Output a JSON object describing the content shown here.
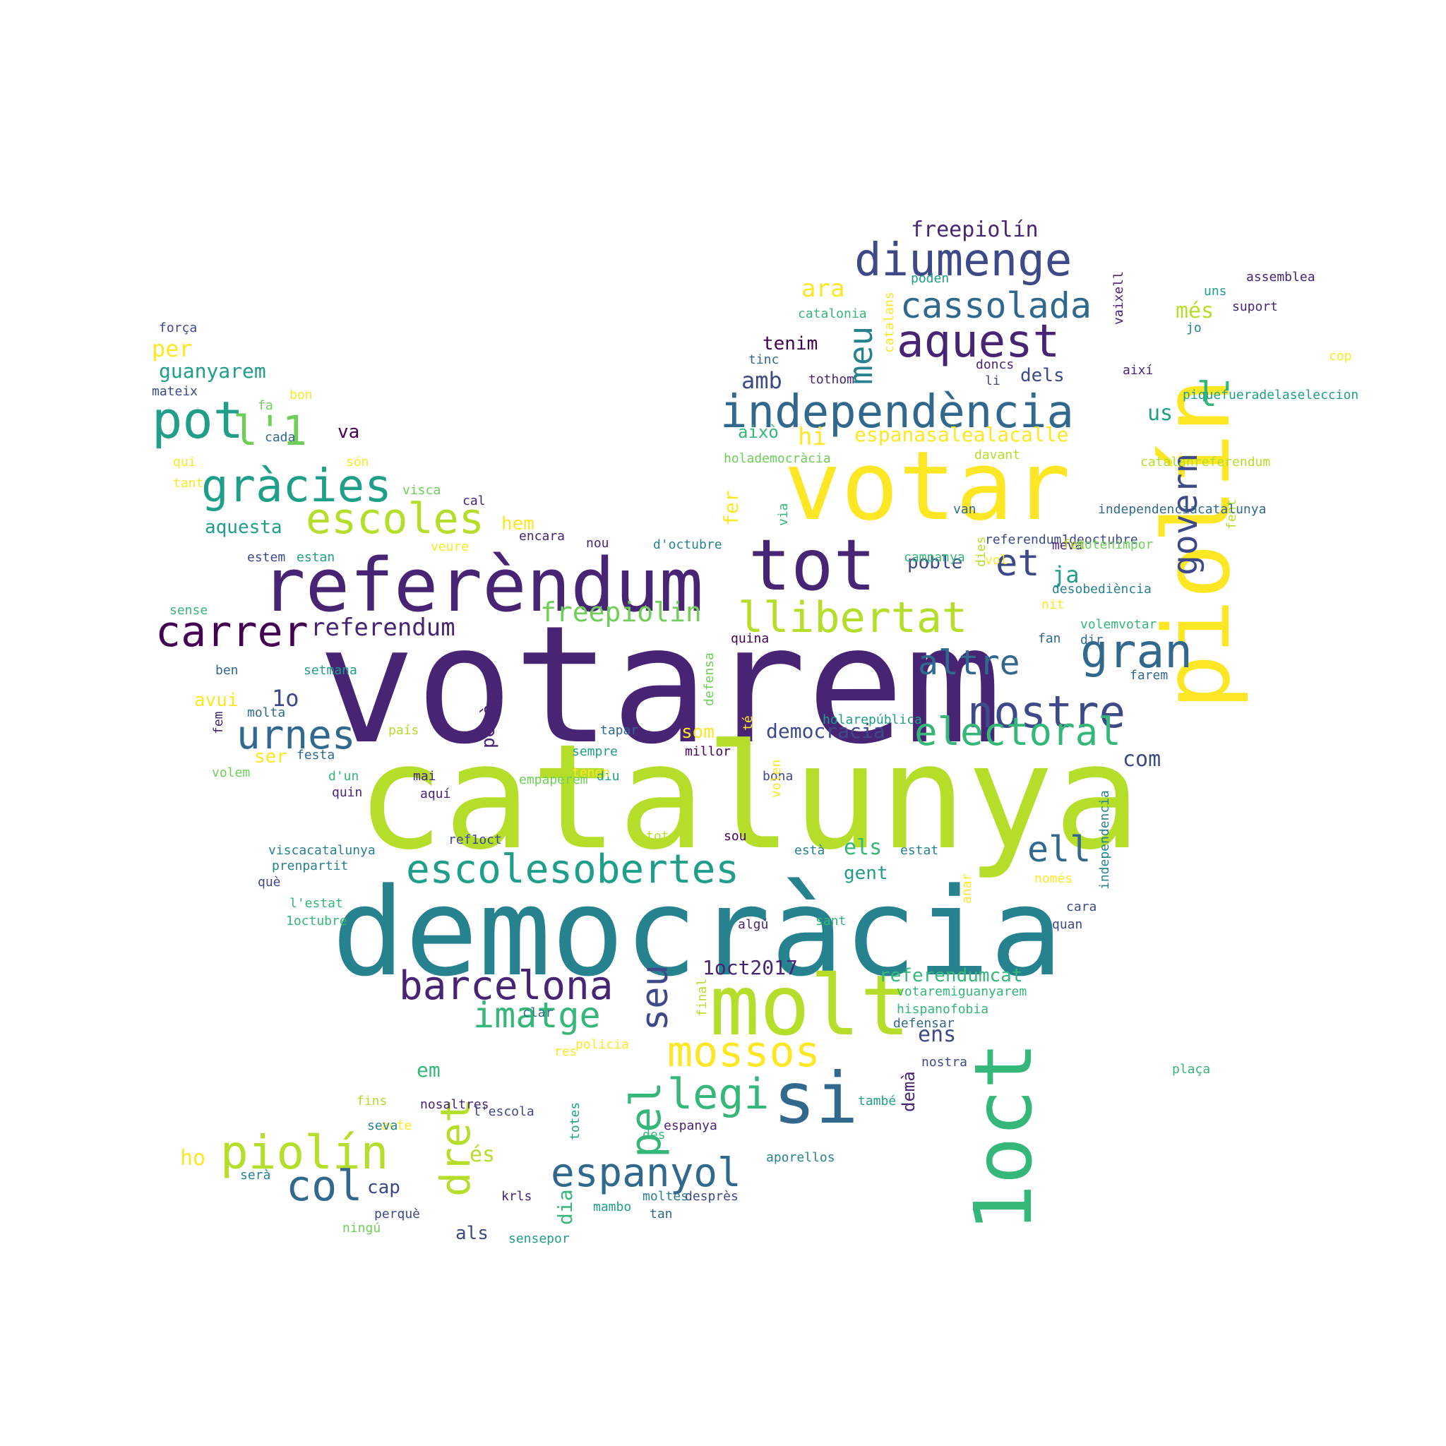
{
  "palette": {
    "purple_dark": "#440154",
    "purple": "#482475",
    "indigo": "#3e4989",
    "blue": "#31688e",
    "teal": "#26828e",
    "teal_green": "#1f9e89",
    "green": "#35b779",
    "lime": "#6ece58",
    "yellow_green": "#b5de2b",
    "yellow": "#fde725"
  },
  "words": [
    {
      "text": "votarem",
      "color": "purple"
    },
    {
      "text": "catalunya",
      "color": "yellow_green"
    },
    {
      "text": "democràcia",
      "color": "teal"
    },
    {
      "text": "votar",
      "color": "yellow"
    },
    {
      "text": "piolín",
      "color": "yellow"
    },
    {
      "text": "referèndum",
      "color": "purple"
    },
    {
      "text": "tot",
      "color": "purple"
    },
    {
      "text": "molt",
      "color": "yellow_green"
    },
    {
      "text": "1oct",
      "color": "green"
    },
    {
      "text": "si",
      "color": "blue"
    },
    {
      "text": "independència",
      "color": "blue"
    },
    {
      "text": "diumenge",
      "color": "indigo"
    },
    {
      "text": "aquest",
      "color": "purple"
    },
    {
      "text": "nostre",
      "color": "indigo"
    },
    {
      "text": "escolesobertes",
      "color": "teal_green"
    },
    {
      "text": "barcelona",
      "color": "purple"
    },
    {
      "text": "llibertat",
      "color": "yellow_green"
    },
    {
      "text": "gràcies",
      "color": "teal_green"
    },
    {
      "text": "carrer",
      "color": "purple_dark"
    },
    {
      "text": "cassolada",
      "color": "blue"
    },
    {
      "text": "escoles",
      "color": "yellow_green"
    },
    {
      "text": "pot",
      "color": "teal_green"
    },
    {
      "text": "urnes",
      "color": "blue"
    },
    {
      "text": "gran",
      "color": "blue"
    },
    {
      "text": "espanyol",
      "color": "blue"
    },
    {
      "text": "piolín",
      "color": "yellow_green"
    },
    {
      "text": "electoral",
      "color": "green"
    },
    {
      "text": "mossos",
      "color": "yellow"
    },
    {
      "text": "govern",
      "color": "indigo"
    },
    {
      "text": "dret",
      "color": "yellow_green"
    },
    {
      "text": "legi",
      "color": "green"
    },
    {
      "text": "altre",
      "color": "blue"
    },
    {
      "text": "imatge",
      "color": "green"
    },
    {
      "text": "col",
      "color": "blue"
    },
    {
      "text": "pel",
      "color": "green"
    },
    {
      "text": "seu",
      "color": "indigo"
    },
    {
      "text": "l'1",
      "color": "lime"
    },
    {
      "text": "l'",
      "color": "green"
    },
    {
      "text": "et",
      "color": "indigo"
    },
    {
      "text": "meu",
      "color": "teal"
    },
    {
      "text": "ell",
      "color": "blue"
    },
    {
      "text": "freepiolin",
      "color": "lime"
    },
    {
      "text": "referendum",
      "color": "purple"
    },
    {
      "text": "ara",
      "color": "yellow"
    },
    {
      "text": "freepiolín",
      "color": "purple"
    },
    {
      "text": "ja",
      "color": "teal_green"
    },
    {
      "text": "1oct2017",
      "color": "purple"
    },
    {
      "text": "referendumcat",
      "color": "green"
    },
    {
      "text": "amb",
      "color": "indigo"
    },
    {
      "text": "més",
      "color": "yellow_green"
    },
    {
      "text": "tenim",
      "color": "purple_dark"
    },
    {
      "text": "hi",
      "color": "yellow"
    },
    {
      "text": "espanasalealacalle",
      "color": "yellow"
    },
    {
      "text": "això",
      "color": "green"
    },
    {
      "text": "dels",
      "color": "indigo"
    },
    {
      "text": "us",
      "color": "teal_green"
    },
    {
      "text": "com",
      "color": "indigo"
    },
    {
      "text": "els",
      "color": "green"
    },
    {
      "text": "gent",
      "color": "teal_green"
    },
    {
      "text": "poble",
      "color": "indigo"
    },
    {
      "text": "democracia",
      "color": "indigo"
    },
    {
      "text": "som",
      "color": "yellow"
    },
    {
      "text": "ens",
      "color": "indigo"
    },
    {
      "text": "em",
      "color": "green"
    },
    {
      "text": "és",
      "color": "yellow_green"
    },
    {
      "text": "ho",
      "color": "yellow"
    },
    {
      "text": "cap",
      "color": "indigo"
    },
    {
      "text": "als",
      "color": "indigo"
    },
    {
      "text": "dia",
      "color": "green"
    },
    {
      "text": "hem",
      "color": "yellow"
    },
    {
      "text": "aquesta",
      "color": "teal_green"
    },
    {
      "text": "per",
      "color": "yellow"
    },
    {
      "text": "guanyarem",
      "color": "teal_green"
    },
    {
      "text": "va",
      "color": "purple_dark"
    },
    {
      "text": "1o",
      "color": "indigo"
    },
    {
      "text": "avui",
      "color": "yellow"
    },
    {
      "text": "ser",
      "color": "yellow"
    },
    {
      "text": "fer",
      "color": "yellow"
    },
    {
      "text": "però",
      "color": "purple"
    },
    {
      "text": "demà",
      "color": "purple"
    },
    {
      "text": "força",
      "color": "indigo"
    },
    {
      "text": "mateix",
      "color": "indigo"
    },
    {
      "text": "fa",
      "color": "lime"
    },
    {
      "text": "bon",
      "color": "yellow"
    },
    {
      "text": "cada",
      "color": "blue"
    },
    {
      "text": "qui",
      "color": "yellow"
    },
    {
      "text": "són",
      "color": "yellow"
    },
    {
      "text": "tant",
      "color": "yellow"
    },
    {
      "text": "visca",
      "color": "lime"
    },
    {
      "text": "cal",
      "color": "purple"
    },
    {
      "text": "encara",
      "color": "purple"
    },
    {
      "text": "estem",
      "color": "indigo"
    },
    {
      "text": "estan",
      "color": "teal_green"
    },
    {
      "text": "veure",
      "color": "yellow"
    },
    {
      "text": "sense",
      "color": "green"
    },
    {
      "text": "ben",
      "color": "blue"
    },
    {
      "text": "setmana",
      "color": "teal_green"
    },
    {
      "text": "fem",
      "color": "purple"
    },
    {
      "text": "molta",
      "color": "blue"
    },
    {
      "text": "festa",
      "color": "blue"
    },
    {
      "text": "volem",
      "color": "lime"
    },
    {
      "text": "d'un",
      "color": "green"
    },
    {
      "text": "quin",
      "color": "purple"
    },
    {
      "text": "aquí",
      "color": "purple"
    },
    {
      "text": "mai",
      "color": "purple"
    },
    {
      "text": "país",
      "color": "yellow_green"
    },
    {
      "text": "tapar",
      "color": "blue"
    },
    {
      "text": "sempre",
      "color": "teal_green"
    },
    {
      "text": "millor",
      "color": "purple_dark"
    },
    {
      "text": "diu",
      "color": "teal_green"
    },
    {
      "text": "tenen",
      "color": "yellow"
    },
    {
      "text": "bona",
      "color": "indigo"
    },
    {
      "text": "empaperem",
      "color": "lime"
    },
    {
      "text": "volen",
      "color": "yellow"
    },
    {
      "text": "defensa",
      "color": "lime"
    },
    {
      "text": "té",
      "color": "yellow"
    },
    {
      "text": "holarepública",
      "color": "teal_green"
    },
    {
      "text": "viscacatalunya",
      "color": "teal"
    },
    {
      "text": "prenpartit",
      "color": "teal"
    },
    {
      "text": "què",
      "color": "indigo"
    },
    {
      "text": "l'estat",
      "color": "green"
    },
    {
      "text": "1octubre",
      "color": "green"
    },
    {
      "text": "ref1oct",
      "color": "indigo"
    },
    {
      "text": "sou",
      "color": "purple_dark"
    },
    {
      "text": "tota",
      "color": "yellow_green"
    },
    {
      "text": "està",
      "color": "teal"
    },
    {
      "text": "estat",
      "color": "teal"
    },
    {
      "text": "algú",
      "color": "purple"
    },
    {
      "text": "sant",
      "color": "green"
    },
    {
      "text": "cara",
      "color": "indigo"
    },
    {
      "text": "quan",
      "color": "indigo"
    },
    {
      "text": "anar",
      "color": "yellow"
    },
    {
      "text": "només",
      "color": "yellow"
    },
    {
      "text": "independencia",
      "color": "teal"
    },
    {
      "text": "votaremiguanyarem",
      "color": "green"
    },
    {
      "text": "hispanofobia",
      "color": "green"
    },
    {
      "text": "defensar",
      "color": "blue"
    },
    {
      "text": "final",
      "color": "yellow_green"
    },
    {
      "text": "nostra",
      "color": "indigo"
    },
    {
      "text": "clar",
      "color": "blue"
    },
    {
      "text": "res",
      "color": "yellow"
    },
    {
      "text": "policia",
      "color": "yellow"
    },
    {
      "text": "nosaltres",
      "color": "purple"
    },
    {
      "text": "plaça",
      "color": "green"
    },
    {
      "text": "fins",
      "color": "yellow_green"
    },
    {
      "text": "l'escola",
      "color": "indigo"
    },
    {
      "text": "acte",
      "color": "yellow"
    },
    {
      "text": "totes",
      "color": "teal_green"
    },
    {
      "text": "també",
      "color": "teal_green"
    },
    {
      "text": "seva",
      "color": "teal"
    },
    {
      "text": "espanya",
      "color": "purple"
    },
    {
      "text": "des",
      "color": "green"
    },
    {
      "text": "aporellos",
      "color": "teal"
    },
    {
      "text": "serà",
      "color": "teal"
    },
    {
      "text": "krls",
      "color": "purple"
    },
    {
      "text": "moltes",
      "color": "teal"
    },
    {
      "text": "desprès",
      "color": "indigo"
    },
    {
      "text": "perquè",
      "color": "indigo"
    },
    {
      "text": "mambo",
      "color": "teal_green"
    },
    {
      "text": "tan",
      "color": "blue"
    },
    {
      "text": "ningú",
      "color": "lime"
    },
    {
      "text": "sensepor",
      "color": "teal_green"
    },
    {
      "text": "poden",
      "color": "teal_green"
    },
    {
      "text": "catalonia",
      "color": "green"
    },
    {
      "text": "catalans",
      "color": "yellow"
    },
    {
      "text": "vaixell",
      "color": "purple"
    },
    {
      "text": "assemblea",
      "color": "purple"
    },
    {
      "text": "uns",
      "color": "teal_green"
    },
    {
      "text": "suport",
      "color": "purple"
    },
    {
      "text": "jo",
      "color": "teal"
    },
    {
      "text": "cop",
      "color": "yellow"
    },
    {
      "text": "tinc",
      "color": "blue"
    },
    {
      "text": "tothom",
      "color": "purple"
    },
    {
      "text": "doncs",
      "color": "purple"
    },
    {
      "text": "li",
      "color": "indigo"
    },
    {
      "text": "així",
      "color": "purple"
    },
    {
      "text": "piquefueradelaseleccion",
      "color": "teal_green"
    },
    {
      "text": "holademocràcia",
      "color": "lime"
    },
    {
      "text": "davant",
      "color": "yellow_green"
    },
    {
      "text": "catalanreferendum",
      "color": "yellow_green"
    },
    {
      "text": "fent",
      "color": "yellow_green"
    },
    {
      "text": "via",
      "color": "green"
    },
    {
      "text": "van",
      "color": "blue"
    },
    {
      "text": "independenciacatalunya",
      "color": "blue"
    },
    {
      "text": "referendum1deoctubre",
      "color": "indigo"
    },
    {
      "text": "nou",
      "color": "purple"
    },
    {
      "text": "d'octubre",
      "color": "teal"
    },
    {
      "text": "meva",
      "color": "purple"
    },
    {
      "text": "fet",
      "color": "yellow_green"
    },
    {
      "text": "vol",
      "color": "yellow"
    },
    {
      "text": "notenimpor",
      "color": "lime"
    },
    {
      "text": "campanya",
      "color": "green"
    },
    {
      "text": "dies",
      "color": "yellow_green"
    },
    {
      "text": "desobediència",
      "color": "teal"
    },
    {
      "text": "nit",
      "color": "yellow"
    },
    {
      "text": "quina",
      "color": "purple_dark"
    },
    {
      "text": "volemvotar",
      "color": "green"
    },
    {
      "text": "fan",
      "color": "blue"
    },
    {
      "text": "dir",
      "color": "blue"
    },
    {
      "text": "farem",
      "color": "blue"
    }
  ]
}
